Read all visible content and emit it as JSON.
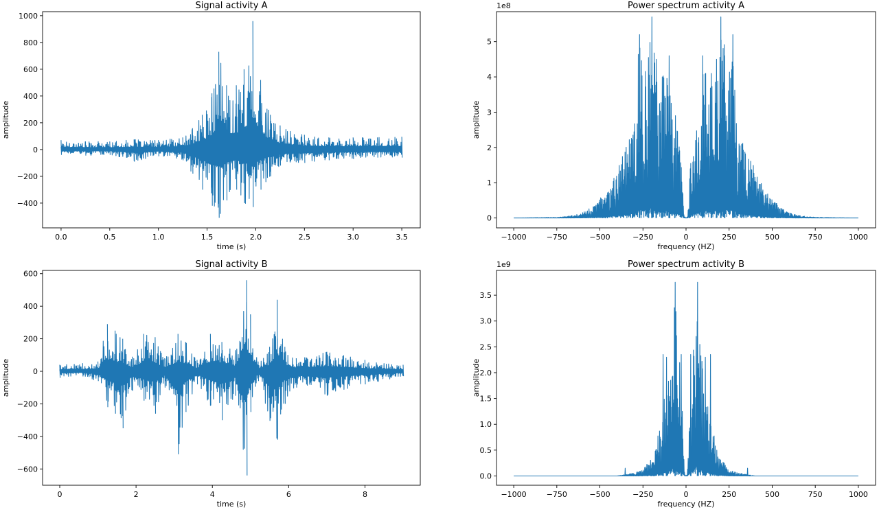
{
  "figure": {
    "background": "#ffffff"
  },
  "chart_data": [
    {
      "id": "signal-a",
      "type": "line",
      "title": "Signal activity A",
      "xlabel": "time (s)",
      "ylabel": "amplitude",
      "xlim": [
        -0.19,
        3.69
      ],
      "ylim": [
        -585,
        1030
      ],
      "xticks": [
        0.0,
        0.5,
        1.0,
        1.5,
        2.0,
        2.5,
        3.0,
        3.5
      ],
      "xtick_labels": [
        "0.0",
        "0.5",
        "1.0",
        "1.5",
        "2.0",
        "2.5",
        "3.0",
        "3.5"
      ],
      "yticks": [
        -400,
        -200,
        0,
        200,
        400,
        600,
        800,
        1000
      ],
      "ytick_labels": [
        "−400",
        "−200",
        "0",
        "200",
        "400",
        "600",
        "800",
        "1000"
      ],
      "exponent_label": "",
      "grid": false,
      "color": "#1f77b4",
      "envelope": {
        "x": [
          0.0,
          0.25,
          0.5,
          0.75,
          1.0,
          1.25,
          1.35,
          1.45,
          1.55,
          1.62,
          1.7,
          1.8,
          1.88,
          1.97,
          2.05,
          2.15,
          2.25,
          2.5,
          2.75,
          3.0,
          3.25,
          3.5
        ],
        "upper": [
          70,
          60,
          60,
          75,
          70,
          90,
          160,
          260,
          420,
          730,
          480,
          480,
          600,
          960,
          520,
          260,
          180,
          110,
          90,
          90,
          90,
          95
        ],
        "lower": [
          -40,
          -45,
          -40,
          -90,
          -50,
          -80,
          -180,
          -300,
          -420,
          -510,
          -380,
          -300,
          -400,
          -430,
          -300,
          -200,
          -120,
          -100,
          -80,
          -70,
          -60,
          -60
        ]
      }
    },
    {
      "id": "power-a",
      "type": "line",
      "title": "Power spectrum activity A",
      "xlabel": "frequency (HZ)",
      "ylabel": "amplitude",
      "xlim": [
        -1100,
        1100
      ],
      "ylim": [
        -0.28,
        5.85
      ],
      "xticks": [
        -1000,
        -750,
        -500,
        -250,
        0,
        250,
        500,
        750,
        1000
      ],
      "xtick_labels": [
        "−1000",
        "−750",
        "−500",
        "−250",
        "0",
        "250",
        "500",
        "750",
        "1000"
      ],
      "yticks": [
        0,
        1,
        2,
        3,
        4,
        5
      ],
      "ytick_labels": [
        "0",
        "1",
        "2",
        "3",
        "4",
        "5"
      ],
      "exponent_label": "1e8",
      "grid": false,
      "color": "#1f77b4",
      "spectrum": {
        "f": [
          0,
          10,
          25,
          50,
          100,
          150,
          180,
          200,
          250,
          270,
          300,
          350,
          400,
          450,
          500,
          550,
          600,
          650,
          700,
          750,
          1000
        ],
        "amp": [
          0.0,
          0.05,
          1.5,
          2.5,
          4.4,
          4.0,
          4.6,
          5.7,
          4.5,
          5.2,
          2.8,
          2.0,
          1.4,
          0.9,
          0.55,
          0.3,
          0.15,
          0.08,
          0.04,
          0.02,
          0.0
        ],
        "peaks": [
          [
            -272,
            5.2
          ],
          [
            -220,
            4.55
          ],
          [
            -200,
            5.7
          ],
          [
            -175,
            4.5
          ],
          [
            -140,
            4.0
          ],
          [
            -100,
            4.6
          ],
          [
            95,
            4.6
          ],
          [
            145,
            4.1
          ],
          [
            175,
            4.5
          ],
          [
            200,
            5.7
          ],
          [
            222,
            4.6
          ],
          [
            270,
            5.2
          ]
        ]
      }
    },
    {
      "id": "signal-b",
      "type": "line",
      "title": "Signal activity B",
      "xlabel": "time (s)",
      "ylabel": "amplitude",
      "xlim": [
        -0.45,
        9.45
      ],
      "ylim": [
        -700,
        620
      ],
      "xticks": [
        0,
        2,
        4,
        6,
        8
      ],
      "xtick_labels": [
        "0",
        "2",
        "4",
        "6",
        "8"
      ],
      "yticks": [
        -600,
        -400,
        -200,
        0,
        200,
        400,
        600
      ],
      "ytick_labels": [
        "−600",
        "−400",
        "−200",
        "0",
        "200",
        "400",
        "600"
      ],
      "exponent_label": "",
      "grid": false,
      "color": "#1f77b4",
      "envelope": {
        "x": [
          0.0,
          0.6,
          1.0,
          1.25,
          1.45,
          1.65,
          1.9,
          2.2,
          2.5,
          2.75,
          3.1,
          3.3,
          3.6,
          3.95,
          4.25,
          4.6,
          4.9,
          5.0,
          5.2,
          5.5,
          5.7,
          5.9,
          6.2,
          7.0,
          8.0,
          9.0
        ],
        "upper": [
          40,
          50,
          60,
          290,
          250,
          200,
          90,
          230,
          210,
          80,
          230,
          180,
          70,
          230,
          180,
          130,
          560,
          350,
          60,
          150,
          440,
          150,
          80,
          120,
          70,
          40
        ],
        "lower": [
          -40,
          -30,
          -60,
          -220,
          -260,
          -350,
          -120,
          -180,
          -260,
          -100,
          -510,
          -250,
          -80,
          -210,
          -300,
          -150,
          -640,
          -250,
          -60,
          -300,
          -420,
          -200,
          -100,
          -150,
          -80,
          -30
        ]
      }
    },
    {
      "id": "power-b",
      "type": "line",
      "title": "Power spectrum activity B",
      "xlabel": "frequency (HZ)",
      "ylabel": "amplitude",
      "xlim": [
        -1100,
        1100
      ],
      "ylim": [
        -0.18,
        3.98
      ],
      "xticks": [
        -1000,
        -750,
        -500,
        -250,
        0,
        250,
        500,
        750,
        1000
      ],
      "xtick_labels": [
        "−1000",
        "−750",
        "−500",
        "−250",
        "0",
        "250",
        "500",
        "750",
        "1000"
      ],
      "yticks": [
        0.0,
        0.5,
        1.0,
        1.5,
        2.0,
        2.5,
        3.0,
        3.5
      ],
      "ytick_labels": [
        "0.0",
        "0.5",
        "1.0",
        "1.5",
        "2.0",
        "2.5",
        "3.0",
        "3.5"
      ],
      "exponent_label": "1e9",
      "grid": false,
      "color": "#1f77b4",
      "spectrum": {
        "f": [
          0,
          8,
          20,
          40,
          60,
          80,
          100,
          130,
          150,
          180,
          200,
          250,
          300,
          350,
          400,
          1000
        ],
        "amp": [
          0.0,
          0.05,
          1.2,
          2.4,
          3.75,
          2.8,
          1.9,
          1.5,
          1.0,
          0.5,
          0.35,
          0.12,
          0.06,
          0.03,
          0.0,
          0.0
        ],
        "peaks": [
          [
            -135,
            2.35
          ],
          [
            -115,
            2.3
          ],
          [
            -65,
            3.75
          ],
          [
            -30,
            2.35
          ],
          [
            25,
            2.35
          ],
          [
            65,
            3.75
          ],
          [
            110,
            2.3
          ],
          [
            140,
            2.35
          ],
          [
            355,
            0.15
          ],
          [
            -355,
            0.15
          ]
        ]
      }
    }
  ]
}
